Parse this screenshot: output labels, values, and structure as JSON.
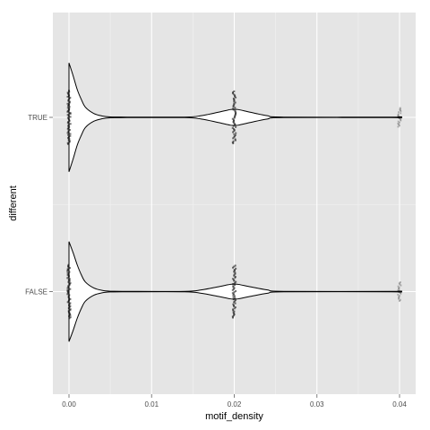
{
  "chart_data": {
    "type": "violin",
    "orientation": "horizontal",
    "xlabel": "motif_density",
    "ylabel": "different",
    "xlim": [
      -0.002,
      0.041
    ],
    "x_ticks": [
      0.0,
      0.01,
      0.02,
      0.03,
      0.04
    ],
    "x_tick_labels": [
      "0.00",
      "0.01",
      "0.02",
      "0.03",
      "0.04"
    ],
    "categories": [
      "TRUE",
      "FALSE"
    ],
    "series": [
      {
        "category": "TRUE",
        "density_profile": [
          [
            0.0,
            0.98
          ],
          [
            0.0005,
            0.75
          ],
          [
            0.001,
            0.5
          ],
          [
            0.0015,
            0.32
          ],
          [
            0.002,
            0.18
          ],
          [
            0.003,
            0.07
          ],
          [
            0.004,
            0.025
          ],
          [
            0.005,
            0.008
          ],
          [
            0.007,
            0.005
          ],
          [
            0.014,
            0.005
          ],
          [
            0.016,
            0.03
          ],
          [
            0.018,
            0.09
          ],
          [
            0.0195,
            0.14
          ],
          [
            0.02,
            0.145
          ],
          [
            0.0205,
            0.14
          ],
          [
            0.022,
            0.09
          ],
          [
            0.024,
            0.03
          ],
          [
            0.026,
            0.005
          ],
          [
            0.039,
            0.005
          ],
          [
            0.0399,
            0.012
          ],
          [
            0.04,
            0.01
          ]
        ],
        "points": [
          {
            "x": 0.0,
            "spread": 0.4
          },
          {
            "x": 0.02,
            "spread": 0.39
          },
          {
            "x": 0.04,
            "spread": 0.14
          }
        ]
      },
      {
        "category": "FALSE",
        "density_profile": [
          [
            0.0,
            0.9
          ],
          [
            0.0005,
            0.7
          ],
          [
            0.001,
            0.48
          ],
          [
            0.0015,
            0.3
          ],
          [
            0.002,
            0.17
          ],
          [
            0.003,
            0.065
          ],
          [
            0.004,
            0.022
          ],
          [
            0.005,
            0.007
          ],
          [
            0.007,
            0.004
          ],
          [
            0.014,
            0.004
          ],
          [
            0.016,
            0.03
          ],
          [
            0.018,
            0.085
          ],
          [
            0.0195,
            0.13
          ],
          [
            0.02,
            0.135
          ],
          [
            0.0205,
            0.13
          ],
          [
            0.022,
            0.085
          ],
          [
            0.024,
            0.03
          ],
          [
            0.026,
            0.004
          ],
          [
            0.039,
            0.004
          ],
          [
            0.0399,
            0.01
          ],
          [
            0.04,
            0.008
          ]
        ],
        "points": [
          {
            "x": 0.0,
            "spread": 0.4
          },
          {
            "x": 0.02,
            "spread": 0.39
          },
          {
            "x": 0.04,
            "spread": 0.14
          }
        ]
      }
    ],
    "grid": true,
    "legend": "none",
    "colors": {
      "panel_background": "#e5e5e5",
      "grid_major": "#ffffff",
      "grid_minor": "#f2f2f2",
      "violin_outline": "#000000",
      "violin_fill": "#ffffff",
      "points": "#000000",
      "tick_label": "#4d4d4d"
    }
  }
}
